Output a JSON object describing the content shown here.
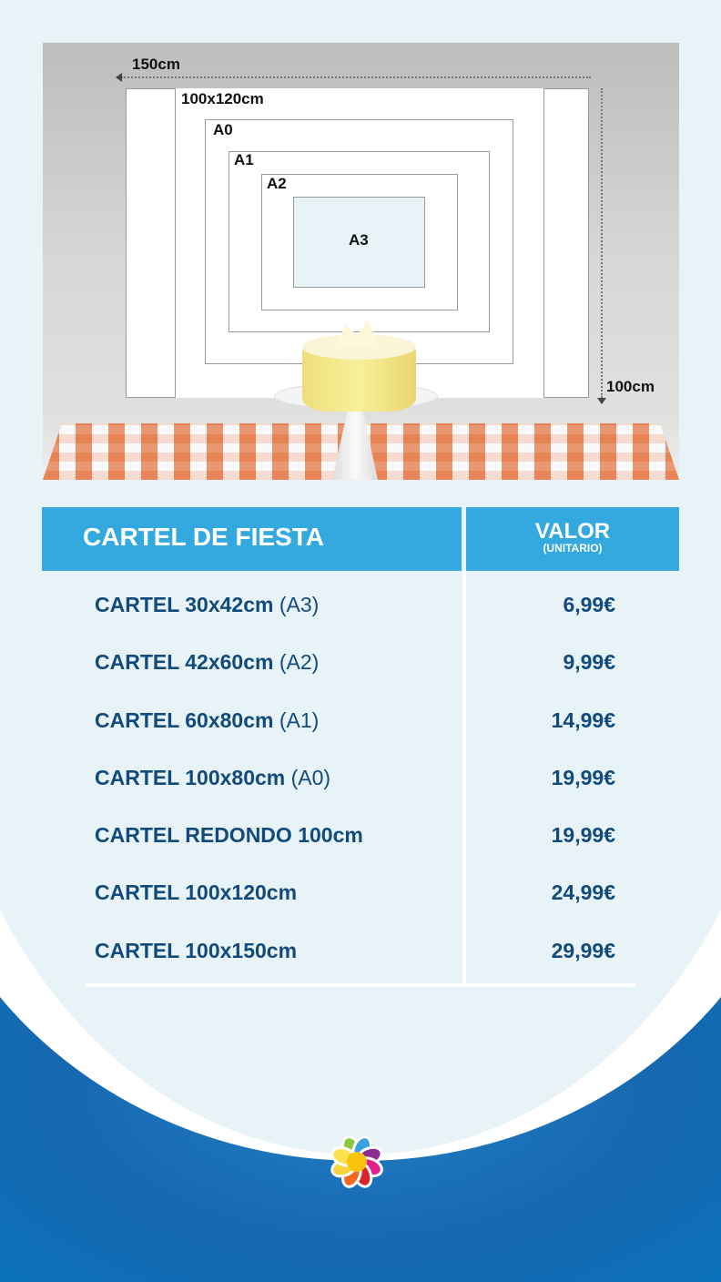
{
  "diagram": {
    "width_label": "150cm",
    "height_label": "100cm",
    "sizes": [
      "100x120cm",
      "A0",
      "A1",
      "A2",
      "A3"
    ]
  },
  "table": {
    "header_product": "CARTEL DE FIESTA",
    "header_value": "VALOR",
    "header_value_sub": "(UNITARIO)",
    "rows": [
      {
        "name": "CARTEL 30x42cm",
        "size": "(A3)",
        "price": "6,99€"
      },
      {
        "name": "CARTEL 42x60cm",
        "size": "(A2)",
        "price": "9,99€"
      },
      {
        "name": "CARTEL 60x80cm",
        "size": "(A1)",
        "price": "14,99€"
      },
      {
        "name": "CARTEL 100x80cm",
        "size": "(A0)",
        "price": "19,99€"
      },
      {
        "name": "CARTEL REDONDO 100cm",
        "size": "",
        "price": "19,99€"
      },
      {
        "name": "CARTEL 100x120cm",
        "size": "",
        "price": "24,99€"
      },
      {
        "name": "CARTEL 100x150cm",
        "size": "",
        "price": "29,99€"
      }
    ]
  },
  "colors": {
    "header": "#33a9e0",
    "text": "#124a7c",
    "footer": "#1570b8",
    "background": "#e8f3f8"
  }
}
